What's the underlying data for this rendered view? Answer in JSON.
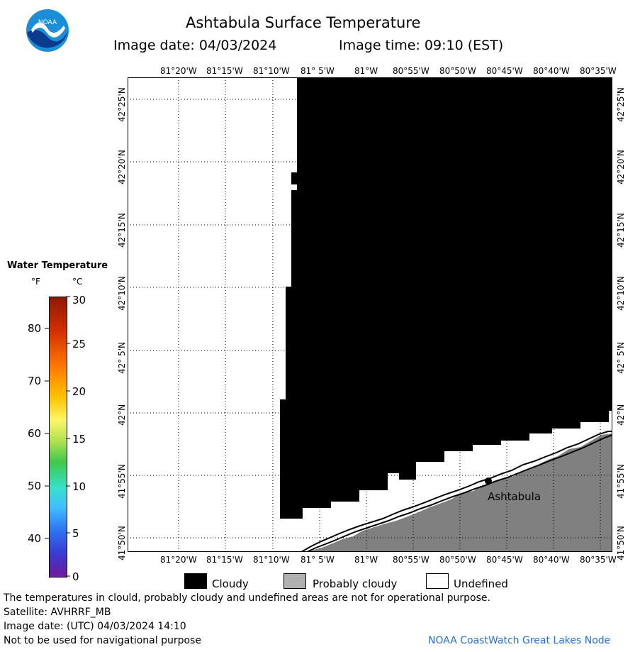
{
  "header": {
    "title": "Ashtabula Surface Temperature",
    "image_date_label": "Image date: 04/03/2024",
    "image_time_label": "Image time: 09:10 (EST)"
  },
  "logo": {
    "text": "NOAA",
    "color": "#1a8fd8"
  },
  "axes": {
    "longitude_ticks": [
      "81°20'W",
      "81°15'W",
      "81°10'W",
      "81° 5'W",
      "81°W",
      "80°55'W",
      "80°50'W",
      "80°45'W",
      "80°40'W",
      "80°35'W"
    ],
    "latitude_ticks": [
      "42°25'N",
      "42°20'N",
      "42°15'N",
      "42°10'N",
      "42° 5'N",
      "42°N",
      "41°55'N",
      "41°50'N"
    ]
  },
  "map": {
    "place_label": "Ashtabula",
    "colors": {
      "cloudy": "#000000",
      "probably_cloudy": "#808080",
      "undefined": "#ffffff"
    }
  },
  "colorbar": {
    "title": "Water Temperature",
    "unit_f": "°F",
    "unit_c": "°C",
    "f_ticks": [
      "80",
      "70",
      "60",
      "50",
      "40"
    ],
    "c_ticks": [
      "30",
      "25",
      "20",
      "15",
      "10",
      "5",
      "0"
    ]
  },
  "legend": {
    "cloudy": "Cloudy",
    "probably_cloudy": "Probably cloudy",
    "undefined": "Undefined"
  },
  "footer": {
    "line1": "The temperatures in clould, probably cloudy and undefined areas are not for operational purpose.",
    "line2": "Satellite: AVHRRF_MB",
    "line3": "Image date: (UTC) 04/03/2024  14:10",
    "line4": "Not to be used for navigational purpose",
    "credit": "NOAA CoastWatch Great Lakes Node",
    "credit_color": "#2a6fd6"
  }
}
